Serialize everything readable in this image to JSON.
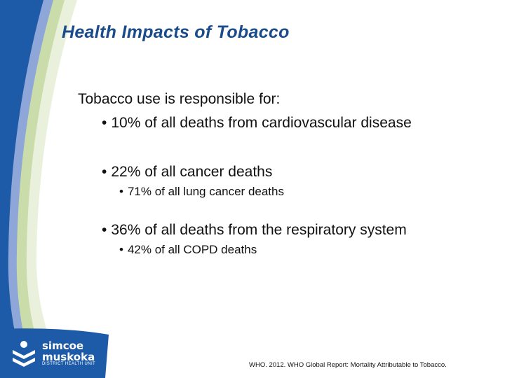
{
  "slide": {
    "title": "Health Impacts of Tobacco",
    "intro": "Tobacco use is responsible for:",
    "bullets": [
      {
        "text": "10% of all deaths from cardiovascular disease"
      },
      {
        "text": "22% of all cancer deaths",
        "sub": "71% of all lung cancer deaths"
      },
      {
        "text": "36% of all deaths from the respiratory system",
        "sub": "42% of all COPD deaths"
      }
    ],
    "bullet_glyph": "•",
    "citation": "WHO. 2012. WHO Global Report: Mortality Attributable to Tobacco."
  },
  "logo": {
    "line1": "simcoe",
    "line2": "muskoka",
    "tagline": "DISTRICT HEALTH UNIT"
  },
  "colors": {
    "title": "#1a4c8c",
    "band_blue": "#1d5ba8",
    "band_light_blue": "#8fa6d8",
    "band_green": "#c9dcaa"
  }
}
